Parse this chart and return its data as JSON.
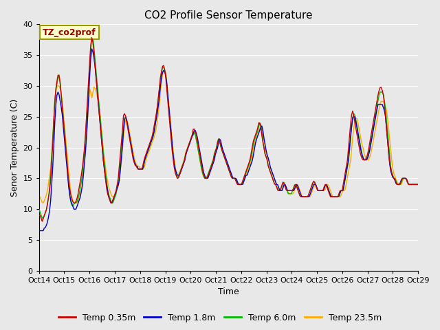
{
  "title": "CO2 Profile Sensor Temperature",
  "xlabel": "Time",
  "ylabel": "Senor Temperature (C)",
  "ylim": [
    0,
    40
  ],
  "yticks": [
    0,
    5,
    10,
    15,
    20,
    25,
    30,
    35,
    40
  ],
  "x_labels": [
    "Oct 14",
    "Oct 15",
    "Oct 16",
    "Oct 17",
    "Oct 18",
    "Oct 19",
    "Oct 20",
    "Oct 21",
    "Oct 22",
    "Oct 23",
    "Oct 24",
    "Oct 25",
    "Oct 26",
    "Oct 27",
    "Oct 28",
    "Oct 29"
  ],
  "legend_labels": [
    "Temp 0.35m",
    "Temp 1.8m",
    "Temp 6.0m",
    "Temp 23.5m"
  ],
  "line_colors": [
    "#cc0000",
    "#0000cc",
    "#00bb00",
    "#ffaa00"
  ],
  "annotation_text": "TZ_co2prof",
  "annotation_color": "#990000",
  "annotation_bg": "#ffffcc",
  "annotation_border": "#999900",
  "fig_bg": "#e8e8e8",
  "plot_bg": "#e8e8e8",
  "grid_color": "#ffffff",
  "title_fontsize": 11,
  "axis_fontsize": 9,
  "tick_fontsize": 8,
  "n_points": 360,
  "temp_035m": [
    9,
    9,
    8.5,
    8,
    8.5,
    9,
    9.5,
    10,
    11,
    12,
    13,
    15,
    18,
    21,
    25,
    28,
    30,
    31,
    32,
    31.5,
    30,
    28,
    26,
    24,
    22,
    20,
    18,
    16,
    14,
    13,
    12,
    11.5,
    11,
    11,
    11,
    11.5,
    12,
    13,
    14,
    15,
    16,
    17.5,
    19,
    21,
    24,
    27,
    30,
    33,
    36,
    38,
    37.5,
    36,
    34,
    32,
    30,
    28,
    26,
    24,
    22,
    20,
    18,
    16.5,
    15,
    13.5,
    12.5,
    12,
    11.5,
    11,
    11,
    11.5,
    12,
    12.5,
    13,
    14,
    15,
    17,
    19,
    21,
    23,
    25.5,
    25.5,
    25,
    24,
    23,
    22,
    21,
    20,
    19,
    18,
    17.5,
    17,
    17,
    16.5,
    16.5,
    16.5,
    16.5,
    16.5,
    17,
    18,
    18.5,
    19,
    19.5,
    20,
    20.5,
    21,
    21.5,
    22,
    23,
    24,
    25,
    26,
    27.5,
    29,
    31,
    32,
    33,
    33.5,
    33,
    32,
    30,
    28,
    26,
    24,
    22,
    20,
    18.5,
    17,
    16,
    15.5,
    15,
    15,
    15.5,
    16,
    16.5,
    17,
    17.5,
    18,
    19,
    19.5,
    20,
    20.5,
    21,
    21.5,
    22,
    23,
    23,
    22.5,
    22,
    21,
    20,
    19,
    18,
    17,
    16,
    15.5,
    15,
    15,
    15,
    15.5,
    16,
    16.5,
    17,
    17.5,
    18,
    19,
    19.5,
    20,
    21,
    21.5,
    21,
    20,
    19.5,
    19,
    18.5,
    18,
    17.5,
    17,
    16.5,
    16,
    15.5,
    15,
    15,
    15,
    15,
    14.5,
    14,
    14,
    14,
    14,
    14,
    14.5,
    15,
    15.5,
    16,
    16.5,
    17,
    17.5,
    18,
    19,
    20,
    21,
    21.5,
    22,
    22.5,
    23,
    24,
    24,
    23.5,
    22,
    21,
    20,
    19,
    18.5,
    18,
    17,
    16.5,
    16,
    15.5,
    15,
    14.5,
    14,
    14,
    13.5,
    13,
    13,
    13,
    13.5,
    14,
    14.5,
    14,
    13.5,
    13,
    13,
    13,
    13,
    13,
    13,
    13,
    13.5,
    14,
    14,
    13.5,
    13,
    12.5,
    12,
    12,
    12,
    12,
    12,
    12,
    12,
    12,
    12.5,
    13,
    13.5,
    14,
    14.5,
    14.5,
    14,
    13.5,
    13,
    13,
    13,
    13,
    13,
    13,
    13.5,
    14,
    14,
    13.5,
    13,
    12.5,
    12,
    12,
    12,
    12,
    12,
    12,
    12,
    12,
    12.5,
    13,
    13,
    13,
    14,
    15,
    16,
    17,
    18,
    20,
    22,
    24,
    25.5,
    26,
    25,
    24,
    23,
    22,
    21,
    20,
    19,
    18.5,
    18,
    18,
    18,
    18,
    18.5,
    19,
    20,
    21,
    22,
    23,
    24,
    25,
    26,
    27,
    28,
    29,
    29.5,
    30,
    29.5,
    29,
    28,
    26,
    24,
    22,
    20,
    18,
    17,
    16,
    15.5,
    15,
    15,
    14.5,
    14,
    14,
    14,
    14,
    14.5,
    15,
    15,
    15,
    15,
    15,
    14.5,
    14,
    14,
    14,
    14,
    14,
    14,
    14,
    14,
    14,
    14
  ],
  "temp_18m": [
    6.5,
    6.5,
    6.5,
    6.5,
    6.5,
    7,
    7,
    7.5,
    8,
    9,
    10,
    12,
    15,
    18,
    22,
    26,
    28,
    29,
    29,
    28,
    27,
    26,
    24,
    22,
    20,
    18,
    16,
    14,
    12.5,
    11.5,
    11,
    10.5,
    10,
    10,
    10,
    10.5,
    11,
    11.5,
    12,
    13,
    14,
    16,
    18,
    20,
    23,
    26,
    30,
    33,
    36,
    36,
    35,
    34,
    32,
    30,
    28,
    26,
    24,
    22,
    20,
    18,
    16.5,
    15,
    14,
    13,
    12,
    11.5,
    11,
    11,
    11.5,
    12,
    12.5,
    13,
    13.5,
    14,
    15,
    17,
    19,
    21,
    24,
    25,
    25,
    24,
    23,
    22,
    21,
    20,
    19,
    18,
    17.5,
    17,
    17,
    16.5,
    16.5,
    16.5,
    16.5,
    16.5,
    17,
    18,
    18.5,
    19,
    19.5,
    20,
    20.5,
    21,
    21.5,
    22,
    23,
    24,
    25,
    26,
    27.5,
    29,
    31,
    32,
    32.5,
    32.5,
    32,
    31,
    29,
    27,
    25,
    23,
    21,
    19,
    17.5,
    16.5,
    16,
    15.5,
    15.5,
    15.5,
    16,
    16.5,
    17,
    17.5,
    18,
    19,
    19.5,
    20,
    20.5,
    21,
    21.5,
    22,
    22.5,
    23,
    22.5,
    22,
    21,
    20,
    19,
    18,
    17,
    16,
    15.5,
    15,
    15,
    15,
    15.5,
    16,
    16.5,
    17,
    17.5,
    18,
    19,
    19.5,
    20,
    21,
    21.5,
    21,
    20,
    19.5,
    19,
    18.5,
    18,
    17.5,
    17,
    16.5,
    16,
    15.5,
    15,
    15,
    15,
    15,
    14.5,
    14,
    14,
    14,
    14,
    14,
    14.5,
    15,
    15.5,
    15.5,
    16,
    16.5,
    17,
    17.5,
    18,
    19,
    20,
    21,
    21.5,
    22,
    22.5,
    23,
    23.5,
    23.5,
    22,
    21,
    20,
    19,
    18.5,
    18,
    17,
    16.5,
    16,
    15.5,
    15,
    14.5,
    14,
    14,
    13.5,
    13,
    13,
    13,
    13.5,
    14,
    14,
    13.5,
    13,
    13,
    13,
    13,
    13,
    13,
    13,
    13.5,
    14,
    14,
    13.5,
    13,
    12.5,
    12,
    12,
    12,
    12,
    12,
    12,
    12,
    12,
    12.5,
    13,
    13.5,
    14,
    14,
    14,
    13.5,
    13,
    13,
    13,
    13,
    13,
    13,
    13.5,
    14,
    14,
    13.5,
    13,
    12.5,
    12,
    12,
    12,
    12,
    12,
    12,
    12,
    12,
    12.5,
    13,
    13,
    13,
    14,
    15,
    16,
    17,
    18,
    20,
    22,
    23.5,
    25,
    25,
    25,
    24,
    23,
    22,
    21,
    20,
    19,
    18.5,
    18,
    18,
    18,
    18,
    18.5,
    19,
    20,
    21,
    22,
    23,
    24,
    25,
    26,
    27,
    27,
    27,
    27,
    27,
    26.5,
    26,
    25,
    23,
    21,
    19,
    17,
    16,
    15.5,
    15,
    15,
    14.5,
    14,
    14,
    14,
    14,
    14.5,
    15,
    15,
    15,
    15,
    15,
    14.5,
    14,
    14,
    14,
    14,
    14,
    14,
    14,
    14,
    14,
    14
  ],
  "temp_60m": [
    10,
    9.5,
    9,
    8.5,
    8.5,
    9,
    9.5,
    10,
    11,
    12.5,
    14,
    17,
    20,
    23,
    27,
    29,
    30,
    31,
    32,
    31,
    29,
    27,
    25,
    23,
    21,
    18.5,
    16,
    14,
    12,
    11,
    10.5,
    10.5,
    11,
    11,
    11,
    11.5,
    12,
    13,
    14,
    15,
    17,
    19,
    21,
    24,
    27,
    30,
    33,
    36,
    38,
    38,
    36,
    34,
    32,
    30,
    28,
    26,
    24,
    22,
    20,
    18,
    16.5,
    15,
    13.5,
    12.5,
    12,
    11.5,
    11,
    11,
    11.5,
    12,
    12.5,
    13.5,
    14.5,
    16,
    18,
    20,
    22,
    24,
    25,
    25,
    24,
    23,
    22,
    21,
    20,
    19,
    18,
    17.5,
    17,
    17,
    16.5,
    16.5,
    16.5,
    16.5,
    16.5,
    17,
    18,
    18.5,
    19,
    19.5,
    20,
    20.5,
    21,
    21.5,
    22,
    23,
    24.5,
    26,
    27.5,
    29,
    31,
    32,
    33,
    33,
    32.5,
    32,
    30,
    28,
    26,
    24,
    22,
    20,
    18.5,
    17,
    16,
    15.5,
    15,
    15.5,
    16,
    16.5,
    17,
    17.5,
    18,
    19,
    19.5,
    20,
    20.5,
    21,
    21.5,
    22,
    22,
    22.5,
    22,
    21,
    20,
    19,
    18,
    17,
    16,
    15.5,
    15,
    15,
    15,
    15.5,
    16,
    16.5,
    17,
    17.5,
    18,
    19,
    19.5,
    20,
    21,
    21.5,
    21,
    20,
    19.5,
    19,
    18.5,
    18,
    17.5,
    17,
    16.5,
    16,
    15.5,
    15,
    15,
    15,
    15,
    14.5,
    14,
    14,
    14,
    14,
    14,
    14.5,
    15,
    15.5,
    16,
    16.5,
    17,
    17.5,
    18,
    19,
    20,
    21,
    21.5,
    22,
    22.5,
    23,
    24,
    24,
    23,
    21,
    20,
    19,
    18.5,
    18,
    17,
    16.5,
    16,
    15.5,
    15,
    14.5,
    14,
    14,
    13.5,
    13,
    13,
    13,
    13.5,
    14,
    14.5,
    14,
    13.5,
    13,
    12.5,
    12.5,
    12.5,
    12.5,
    13,
    13.5,
    14,
    14,
    13.5,
    13,
    12.5,
    12,
    12,
    12,
    12,
    12,
    12,
    12,
    12,
    12.5,
    13,
    13.5,
    14,
    14.5,
    14.5,
    14,
    13.5,
    13,
    13,
    13,
    13,
    13,
    13,
    13.5,
    14,
    14,
    13.5,
    13,
    12.5,
    12,
    12,
    12,
    12,
    12,
    12,
    12,
    12,
    12.5,
    13,
    13,
    13,
    14,
    15,
    16,
    17,
    18,
    20,
    22,
    24,
    25.5,
    25.5,
    25,
    24,
    23,
    22,
    21,
    20,
    19,
    18.5,
    18,
    18,
    18,
    18.5,
    19,
    20,
    21,
    22,
    23,
    24,
    25,
    26,
    27,
    28,
    29,
    29,
    29,
    29,
    28,
    27,
    25,
    23,
    21,
    19,
    17,
    16,
    15.5,
    15,
    15,
    14.5,
    14,
    14,
    14,
    14,
    14.5,
    15,
    15,
    15,
    15,
    14.5,
    14,
    14,
    14,
    14,
    14,
    14,
    14,
    14,
    14,
    14
  ],
  "temp_235m": [
    12,
    12,
    11.5,
    11,
    11,
    11.5,
    12,
    12.5,
    13.5,
    15,
    16,
    18,
    21,
    24,
    27,
    29,
    30,
    30,
    30,
    29.5,
    28.5,
    27,
    25,
    23,
    21,
    19,
    17,
    15,
    13,
    12,
    11.5,
    11,
    11,
    11,
    11,
    11.5,
    12,
    12.5,
    13.5,
    15,
    17,
    19,
    21,
    24,
    27,
    29.5,
    29,
    28,
    29,
    30,
    29.5,
    29,
    28,
    27,
    26,
    24,
    22,
    20,
    18.5,
    17,
    15.5,
    14.5,
    13.5,
    13,
    12.5,
    12,
    12,
    12,
    12.5,
    13,
    13.5,
    14,
    15.5,
    17.5,
    19.5,
    21.5,
    23.5,
    24.5,
    24.5,
    24,
    23,
    22,
    21,
    20,
    19,
    18,
    17.5,
    17,
    17,
    17,
    16.5,
    16.5,
    16.5,
    16.5,
    17,
    18,
    18.5,
    19,
    19.5,
    20,
    20.5,
    21,
    21.5,
    22,
    23,
    24,
    25.5,
    27,
    29,
    31,
    32,
    32.5,
    32.5,
    32,
    30,
    28,
    26,
    24,
    22,
    20,
    18.5,
    17,
    16,
    15.5,
    15.5,
    16,
    16.5,
    17,
    17.5,
    18,
    19,
    19.5,
    20,
    20.5,
    21,
    21.5,
    22,
    22.5,
    22.5,
    22,
    21,
    20,
    19,
    18,
    17,
    16,
    15.5,
    15,
    15,
    15,
    15.5,
    16,
    16.5,
    17,
    17.5,
    18,
    19,
    19.5,
    20,
    21,
    21,
    20.5,
    20,
    19.5,
    19,
    18.5,
    18,
    17.5,
    17,
    16.5,
    16,
    15.5,
    15,
    15,
    15,
    15,
    14.5,
    14,
    14,
    14,
    14,
    14,
    14.5,
    15,
    15.5,
    16,
    16.5,
    17,
    17.5,
    18,
    19,
    20,
    21,
    21.5,
    22,
    22.5,
    23,
    23.5,
    23.5,
    22,
    21,
    20,
    19,
    18.5,
    18,
    17,
    16.5,
    16,
    15.5,
    15,
    14.5,
    14,
    14,
    13.5,
    13,
    13,
    13,
    13.5,
    14,
    14,
    13.5,
    13,
    12.5,
    12.5,
    12.5,
    12.5,
    12.5,
    13,
    13.5,
    14,
    14,
    13.5,
    13,
    12.5,
    12,
    12,
    12,
    12,
    12,
    12,
    12,
    12,
    12.5,
    13,
    13.5,
    14,
    14,
    13.5,
    13,
    13,
    13,
    13,
    13,
    13,
    13,
    13.5,
    14,
    14,
    13.5,
    13,
    12.5,
    12,
    12,
    12,
    12,
    12,
    12,
    12,
    12,
    12.5,
    13,
    13,
    13,
    14,
    15,
    16,
    17,
    18,
    20,
    22,
    23.5,
    24.5,
    25,
    24.5,
    23.5,
    22.5,
    21.5,
    20.5,
    20,
    19,
    18.5,
    18,
    18,
    18,
    18.5,
    19,
    20,
    21,
    22,
    23,
    24,
    25,
    26,
    27,
    27.5,
    27.5,
    27.5,
    27,
    26.5,
    26,
    24.5,
    22.5,
    20.5,
    19,
    17,
    16,
    15.5,
    15,
    14.5,
    14,
    14,
    14,
    14,
    14.5,
    15,
    15,
    15,
    14.5,
    14,
    14,
    14,
    14,
    14,
    14,
    14,
    14,
    14,
    14
  ]
}
